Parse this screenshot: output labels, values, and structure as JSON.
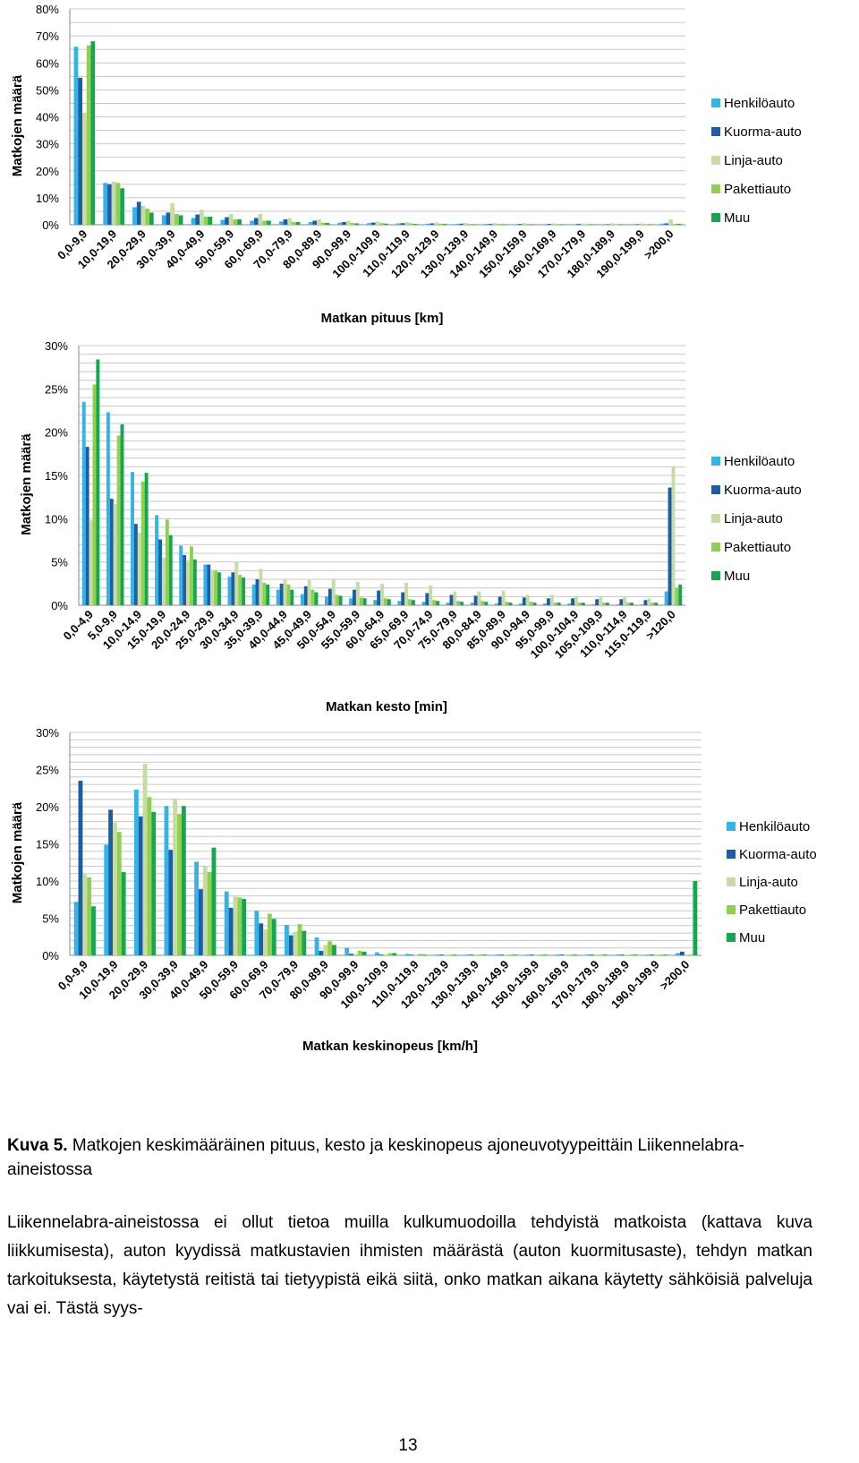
{
  "legend": {
    "series": [
      "Henkilöauto",
      "Kuorma-auto",
      "Linja-auto",
      "Pakettiauto",
      "Muu"
    ],
    "colors": [
      "#33b3e6",
      "#1a5ea8",
      "#c7dca3",
      "#8fd14f",
      "#15a651"
    ]
  },
  "chart_data": [
    {
      "type": "bar",
      "title": "",
      "xlabel": "Matkan pituus [km]",
      "ylabel": "Matkojen määrä",
      "ylim": [
        0,
        80
      ],
      "yticks": [
        0,
        10,
        20,
        30,
        40,
        50,
        60,
        70,
        80
      ],
      "ytick_labels": [
        "0%",
        "10%",
        "20%",
        "30%",
        "40%",
        "50%",
        "60%",
        "70%",
        "80%"
      ],
      "categories": [
        "0,0-9,9",
        "10,0-19,9",
        "20,0-29,9",
        "30,0-39,9",
        "40,0-49,9",
        "50,0-59,9",
        "60,0-69,9",
        "70,0-79,9",
        "80,0-89,9",
        "90,0-99,9",
        "100,0-109,9",
        "110,0-119,9",
        "120,0-129,9",
        "130,0-139,9",
        "140,0-149,9",
        "150,0-159,9",
        "160,0-169,9",
        "170,0-179,9",
        "180,0-189,9",
        "190,0-199,9",
        ">200,0"
      ],
      "series": [
        {
          "name": "Henkilöauto",
          "values": [
            66,
            15.5,
            6.5,
            3.5,
            2.5,
            1.8,
            1.5,
            1.2,
            1,
            0.8,
            0.6,
            0.5,
            0.4,
            0.3,
            0.3,
            0.2,
            0.2,
            0.2,
            0.2,
            0.2,
            0.4
          ]
        },
        {
          "name": "Kuorma-auto",
          "values": [
            54.5,
            15,
            8.5,
            4.5,
            3.8,
            2.8,
            2.5,
            2,
            1.5,
            1,
            0.8,
            0.6,
            0.5,
            0.4,
            0.3,
            0.3,
            0.3,
            0.3,
            0.2,
            0.2,
            0.5
          ]
        },
        {
          "name": "Linja-auto",
          "values": [
            41.5,
            16,
            7,
            8,
            5.5,
            4,
            4,
            2.5,
            2,
            1.5,
            1.2,
            1,
            0.8,
            0.7,
            0.6,
            0.6,
            0.5,
            0.5,
            0.5,
            0.5,
            2
          ]
        },
        {
          "name": "Pakettiauto",
          "values": [
            66.5,
            15.5,
            6,
            4,
            3,
            2,
            1.5,
            1,
            0.8,
            0.7,
            0.6,
            0.5,
            0.4,
            0.3,
            0.3,
            0.3,
            0.2,
            0.2,
            0.2,
            0.2,
            0.3
          ]
        },
        {
          "name": "Muu",
          "values": [
            68,
            13.5,
            4.5,
            3.5,
            3,
            2,
            1.5,
            1,
            0.7,
            0.5,
            0.4,
            0.3,
            0.3,
            0.2,
            0.2,
            0.2,
            0.2,
            0.2,
            0.2,
            0.2,
            0.3
          ]
        }
      ],
      "legend_position": "right"
    },
    {
      "type": "bar",
      "title": "",
      "xlabel": "Matkan kesto [min]",
      "ylabel": "Matkojen määrä",
      "ylim": [
        0,
        30
      ],
      "yticks": [
        0,
        5,
        10,
        15,
        20,
        25,
        30
      ],
      "ytick_labels": [
        "0%",
        "5%",
        "10%",
        "15%",
        "20%",
        "25%",
        "30%"
      ],
      "categories": [
        "0,0-4,9",
        "5,0-9,9",
        "10,0-14,9",
        "15,0-19,9",
        "20,0-24,9",
        "25,0-29,9",
        "30,0-34,9",
        "35,0-39,9",
        "40,0-44,9",
        "45,0-49,9",
        "50,0-54,9",
        "55,0-59,9",
        "60,0-64,9",
        "65,0-69,9",
        "70,0-74,9",
        "75,0-79,9",
        "80,0-84,9",
        "85,0-89,9",
        "90,0-94,9",
        "95,0-99,9",
        "100,0-104,9",
        "105,0-109,9",
        "110,0-114,9",
        "115,0-119,9",
        ">120,0"
      ],
      "series": [
        {
          "name": "Henkilöauto",
          "values": [
            23.5,
            22.3,
            15.4,
            10.4,
            6.9,
            4.7,
            3.3,
            2.4,
            1.8,
            1.3,
            1,
            0.8,
            0.6,
            0.5,
            0.4,
            0.3,
            0.3,
            0.2,
            0.2,
            0.2,
            0.2,
            0.1,
            0.1,
            0.1,
            1.6
          ]
        },
        {
          "name": "Kuorma-auto",
          "values": [
            18.3,
            12.3,
            9.4,
            7.6,
            5.8,
            4.7,
            3.8,
            3,
            2.5,
            2.2,
            1.9,
            1.8,
            1.7,
            1.5,
            1.4,
            1.2,
            1.1,
            1,
            0.9,
            0.8,
            0.8,
            0.7,
            0.7,
            0.6,
            13.6
          ]
        },
        {
          "name": "Linja-auto",
          "values": [
            9.8,
            11.7,
            8.4,
            5.5,
            5.2,
            4.1,
            5,
            4.2,
            3,
            2.9,
            3,
            2.7,
            2.5,
            2.6,
            2.3,
            1.6,
            1.6,
            1.7,
            1.2,
            1.2,
            1,
            1,
            1,
            0.8,
            16
          ]
        },
        {
          "name": "Pakettiauto",
          "values": [
            25.5,
            19.6,
            14.3,
            9.9,
            6.8,
            4,
            3.5,
            2.6,
            2.4,
            1.8,
            1.2,
            0.9,
            0.8,
            0.7,
            0.6,
            0.5,
            0.5,
            0.4,
            0.4,
            0.3,
            0.3,
            0.3,
            0.3,
            0.3,
            2
          ]
        },
        {
          "name": "Muu",
          "values": [
            28.4,
            20.9,
            15.3,
            8.1,
            5.3,
            3.8,
            3.2,
            2.4,
            1.8,
            1.5,
            1.1,
            0.8,
            0.7,
            0.6,
            0.5,
            0.4,
            0.4,
            0.3,
            0.3,
            0.3,
            0.3,
            0.3,
            0.3,
            0.3,
            2.4
          ]
        }
      ],
      "legend_position": "right"
    },
    {
      "type": "bar",
      "title": "",
      "xlabel": "Matkan keskinopeus [km/h]",
      "ylabel": "Matkojen määrä",
      "ylim": [
        0,
        30
      ],
      "yticks": [
        0,
        5,
        10,
        15,
        20,
        25,
        30
      ],
      "ytick_labels": [
        "0%",
        "5%",
        "10%",
        "15%",
        "20%",
        "25%",
        "30%"
      ],
      "categories": [
        "0,0-9,9",
        "10,0-19,9",
        "20,0-29,9",
        "30,0-39,9",
        "40,0-49,9",
        "50,0-59,9",
        "60,0-69,9",
        "70,0-79,9",
        "80,0-89,9",
        "90,0-99,9",
        "100,0-109,9",
        "110,0-119,9",
        "120,0-129,9",
        "130,0-139,9",
        "140,0-149,9",
        "150,0-159,9",
        "160,0-169,9",
        "170,0-179,9",
        "180,0-189,9",
        "190,0-199,9",
        ">200,0"
      ],
      "series": [
        {
          "name": "Henkilöauto",
          "values": [
            7.2,
            14.9,
            22.3,
            20.1,
            12.6,
            8.6,
            6,
            4.1,
            2.4,
            1,
            0.4,
            0.2,
            0.1,
            0.1,
            0.1,
            0.1,
            0.1,
            0.1,
            0.1,
            0.1,
            0.3
          ]
        },
        {
          "name": "Kuorma-auto",
          "values": [
            23.5,
            19.6,
            18.7,
            14.2,
            8.9,
            6.4,
            4.3,
            2.7,
            0.6,
            0.2,
            0.1,
            0.1,
            0.1,
            0.1,
            0.1,
            0.1,
            0.1,
            0.1,
            0.1,
            0.1,
            0.5
          ]
        },
        {
          "name": "Linja-auto",
          "values": [
            10.9,
            17.9,
            25.8,
            21.1,
            12,
            7.9,
            3.5,
            3.2,
            1.4,
            0.2,
            0.1,
            0.1,
            0.1,
            0.1,
            0.1,
            0.1,
            0.1,
            0.1,
            0.1,
            0.1,
            0.1
          ]
        },
        {
          "name": "Pakettiauto",
          "values": [
            10.5,
            16.6,
            21.3,
            19,
            11.2,
            7.8,
            5.6,
            4.2,
            1.9,
            0.6,
            0.3,
            0.2,
            0.1,
            0.1,
            0.1,
            0.1,
            0.1,
            0.1,
            0.1,
            0.1,
            0.1
          ]
        },
        {
          "name": "Muu",
          "values": [
            6.6,
            11.2,
            19.3,
            20.1,
            14.5,
            7.6,
            4.9,
            3.3,
            1.4,
            0.5,
            0.3,
            0.1,
            0.1,
            0.1,
            0.1,
            0.1,
            0.1,
            0.1,
            0.1,
            0.1,
            10
          ]
        }
      ],
      "legend_position": "right"
    }
  ],
  "caption": {
    "label": "Kuva 5.",
    "text": "Matkojen keskimääräinen pituus, kesto ja keskinopeus ajoneuvotyypeittäin Liikennelabra-aineistossa"
  },
  "body_text": "Liikennelabra-aineistossa ei ollut tietoa muilla kulkumuodoilla tehdyistä matkoista (kattava kuva liikkumisesta), auton kyydissä matkustavien ihmisten määrästä (auton kuormitusaste), tehdyn matkan tarkoituksesta, käytetystä reitistä tai tietyypistä eikä siitä, onko matkan aikana käytetty sähköisiä palveluja vai ei. Tästä syys-",
  "page_number": "13"
}
